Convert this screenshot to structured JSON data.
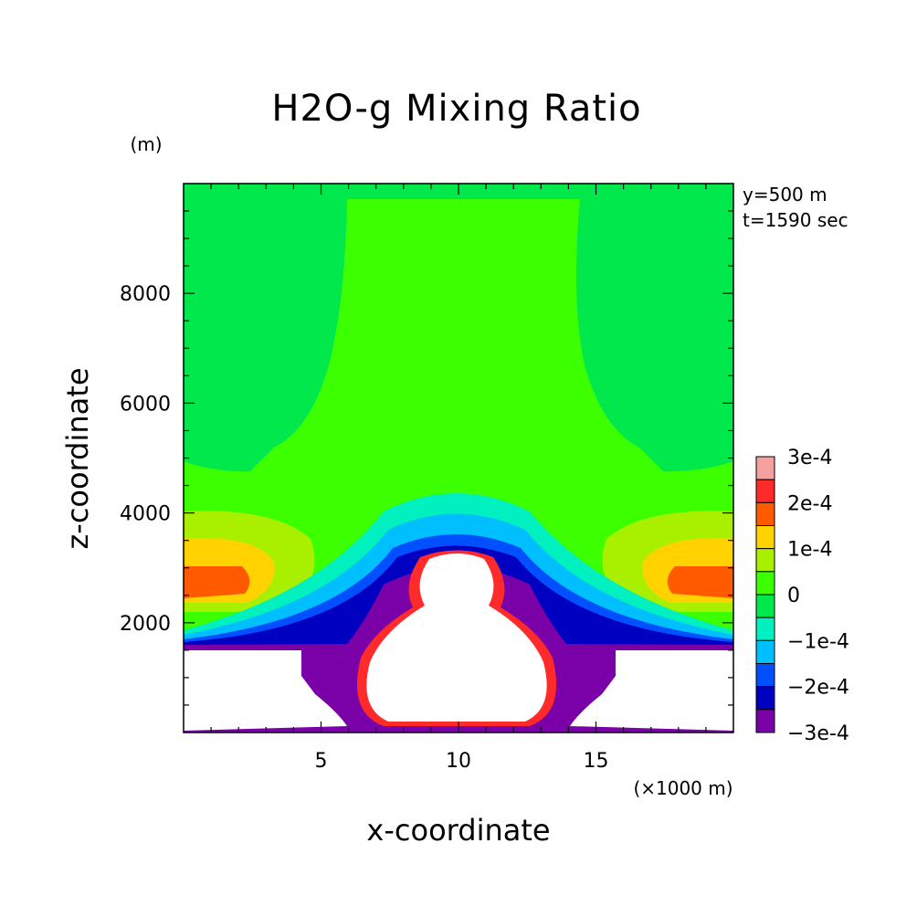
{
  "chart_data": {
    "type": "contour",
    "title": "H2O-g Mixing Ratio",
    "xlabel": "x-coordinate",
    "ylabel": "z-coordinate",
    "x_unit": "(×1000 m)",
    "y_unit": "(m)",
    "xlim": [
      0,
      20
    ],
    "ylim": [
      0,
      10000
    ],
    "x_ticks": [
      "5",
      "10",
      "15"
    ],
    "x_tick_values": [
      5,
      10,
      15
    ],
    "y_ticks": [
      "2000",
      "4000",
      "6000",
      "8000"
    ],
    "y_tick_values": [
      2000,
      4000,
      6000,
      8000
    ],
    "annotations": [
      "y=500 m",
      "t=1590 sec"
    ],
    "colorbar": {
      "labels": [
        "3e-4",
        "2e-4",
        "1e-4",
        "0",
        "−1e-4",
        "−2e-4",
        "−3e-4"
      ],
      "levels": [
        {
          "min": 0.00025,
          "max": 0.0003,
          "color": "#f5a0a0"
        },
        {
          "min": 0.0002,
          "max": 0.00025,
          "color": "#ff2a2a"
        },
        {
          "min": 0.00015,
          "max": 0.0002,
          "color": "#ff5a00"
        },
        {
          "min": 0.0001,
          "max": 0.00015,
          "color": "#ffd200"
        },
        {
          "min": 5e-05,
          "max": 0.0001,
          "color": "#a8f000"
        },
        {
          "min": 0,
          "max": 5e-05,
          "color": "#3cff00"
        },
        {
          "min": -5e-05,
          "max": 0,
          "color": "#00e84c"
        },
        {
          "min": -0.0001,
          "max": -5e-05,
          "color": "#00f0c0"
        },
        {
          "min": -0.00015,
          "max": -0.0001,
          "color": "#00bfff"
        },
        {
          "min": -0.0002,
          "max": -0.00015,
          "color": "#0050ff"
        },
        {
          "min": -0.00025,
          "max": -0.0002,
          "color": "#0000c0"
        },
        {
          "min": -0.0003,
          "max": -0.00025,
          "color": "#7a00a8"
        }
      ]
    }
  }
}
